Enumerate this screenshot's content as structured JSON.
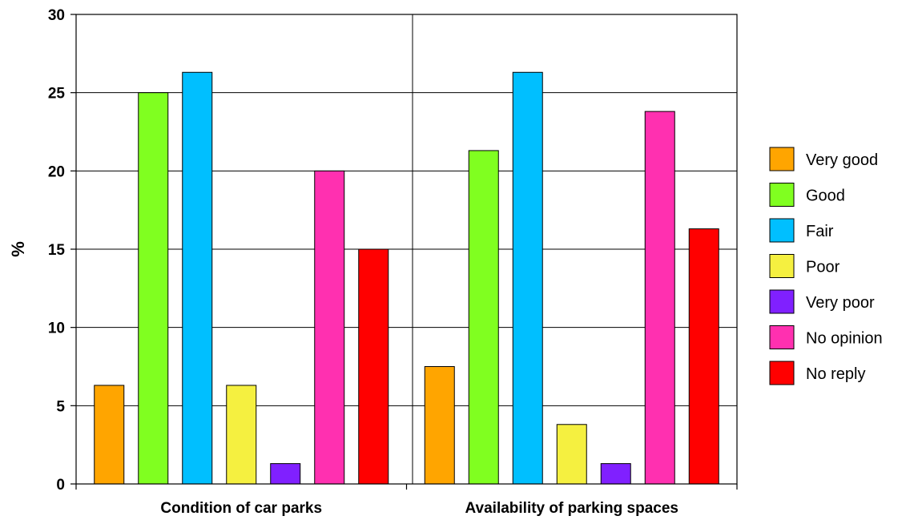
{
  "chart_data": {
    "type": "bar",
    "title": "",
    "xlabel": "",
    "ylabel": "%",
    "ylim": [
      0,
      30
    ],
    "yticks": [
      0,
      5,
      10,
      15,
      20,
      25,
      30
    ],
    "grid": true,
    "legend_position": "right",
    "categories": [
      "Condition of car parks",
      "Availability of parking spaces"
    ],
    "series": [
      {
        "name": "Very good",
        "color": "#FFA500",
        "values": [
          6.3,
          7.5
        ]
      },
      {
        "name": "Good",
        "color": "#80FF20",
        "values": [
          25.0,
          21.3
        ]
      },
      {
        "name": "Fair",
        "color": "#00BFFF",
        "values": [
          26.3,
          26.3
        ]
      },
      {
        "name": "Poor",
        "color": "#F5F040",
        "values": [
          6.3,
          3.8
        ]
      },
      {
        "name": "Very poor",
        "color": "#8020FF",
        "values": [
          1.3,
          1.3
        ]
      },
      {
        "name": "No opinion",
        "color": "#FF30B0",
        "values": [
          20.0,
          23.8
        ]
      },
      {
        "name": "No reply",
        "color": "#FF0000",
        "values": [
          15.0,
          16.3
        ]
      }
    ]
  }
}
